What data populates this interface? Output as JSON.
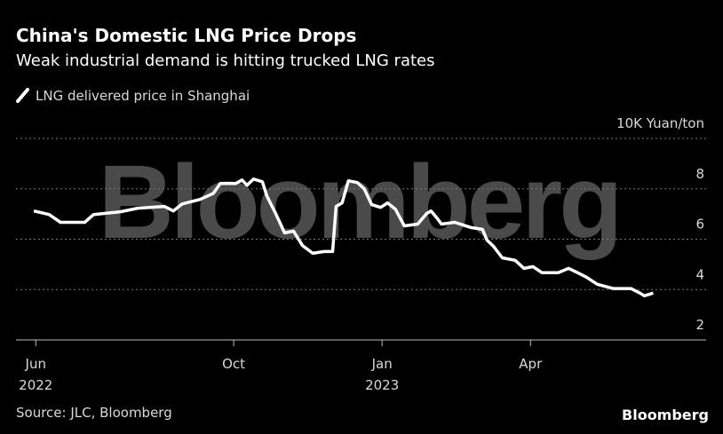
{
  "chart_data": {
    "type": "line",
    "title": "China's Domestic LNG Price Drops",
    "subtitle": "Weak industrial demand is hitting trucked LNG rates",
    "source": "Source: JLC, Bloomberg",
    "logo": "Bloomberg",
    "watermark": "Bloomberg",
    "x": [
      -0.04,
      0.27,
      0.5,
      0.99,
      1.17,
      1.71,
      2.06,
      2.6,
      2.78,
      2.96,
      3.32,
      3.59,
      3.73,
      4.04,
      4.17,
      4.27,
      4.4,
      4.58,
      4.67,
      4.85,
      5.03,
      5.21,
      5.39,
      5.6,
      5.83,
      6.0,
      6.07,
      6.19,
      6.32,
      6.5,
      6.64,
      6.79,
      6.97,
      7.11,
      7.27,
      7.45,
      7.72,
      7.9,
      7.99,
      8.11,
      8.2,
      8.47,
      8.8,
      9.03,
      9.12,
      9.25,
      9.43,
      9.69,
      9.87,
      10.05,
      10.23,
      10.56,
      10.77,
      10.95,
      11.13,
      11.35,
      11.67,
      12.03,
      12.21,
      12.3,
      12.48
    ],
    "series": [
      {
        "name": "LNG delivered price in Shanghai",
        "color": "#ffffff",
        "values": [
          7.12,
          6.98,
          6.67,
          6.67,
          6.98,
          7.09,
          7.23,
          7.3,
          7.12,
          7.4,
          7.58,
          7.82,
          8.21,
          8.21,
          8.35,
          8.14,
          8.39,
          8.28,
          7.72,
          7.02,
          6.25,
          6.32,
          5.75,
          5.44,
          5.51,
          5.51,
          7.3,
          7.44,
          8.32,
          8.25,
          8.0,
          7.37,
          7.26,
          7.44,
          7.19,
          6.53,
          6.6,
          7.02,
          7.12,
          6.84,
          6.6,
          6.67,
          6.46,
          6.39,
          5.96,
          5.72,
          5.26,
          5.16,
          4.84,
          4.91,
          4.67,
          4.67,
          4.84,
          4.67,
          4.49,
          4.21,
          4.04,
          4.04,
          3.86,
          3.75,
          3.86
        ]
      }
    ],
    "xlim": [
      -0.4,
      13.55
    ],
    "xticks": [
      {
        "value": 0,
        "label": "Jun 2022"
      },
      {
        "value": 4,
        "label": "Oct"
      },
      {
        "value": 7,
        "label": "Jan 2023"
      },
      {
        "value": 10,
        "label": "Apr"
      }
    ],
    "ylim": [
      2,
      10
    ],
    "yticks": [
      2,
      4,
      6,
      8,
      {
        "value": 10,
        "label": "10K Yuan/ton"
      }
    ],
    "grid": true
  }
}
